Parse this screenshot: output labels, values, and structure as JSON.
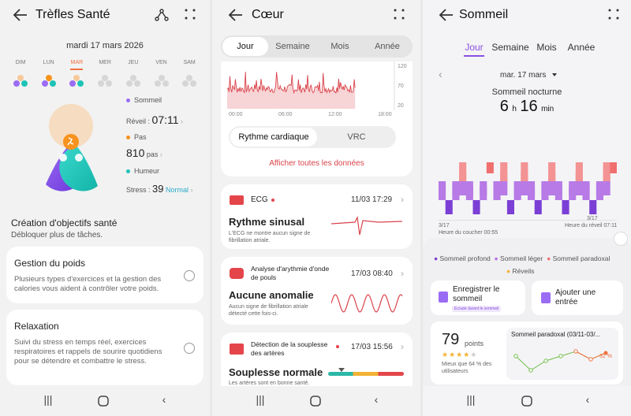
{
  "p1": {
    "title": "Trèfles Santé",
    "date": "mardi 17 mars 2026",
    "days": [
      "DIM",
      "LUN",
      "MAR",
      "MER",
      "JEU",
      "VEN",
      "SAM"
    ],
    "legend": {
      "sleep": "Sommeil",
      "wake_label": "Réveil :",
      "wake_value": "07:11",
      "steps": "Pas",
      "steps_value": "810",
      "steps_unit": "pas",
      "mood": "Humeur",
      "stress_label": "Stress :",
      "stress_value": "39",
      "stress_status": "Normal"
    },
    "goals_title": "Création d'objectifs santé",
    "goals_sub": "Débloquer plus de tâches.",
    "cards": [
      {
        "title": "Gestion du poids",
        "desc": "Plusieurs types d'exercices et la gestion des calories vous aident à contrôler votre poids."
      },
      {
        "title": "Relaxation",
        "desc": "Suivi du stress en temps réel, exercices respiratoires et rappels de sourire quotidiens pour se détendre et combattre le stress."
      }
    ]
  },
  "p2": {
    "title": "Cœur",
    "tabs": [
      "Jour",
      "Semaine",
      "Mois",
      "Année"
    ],
    "chart_data": {
      "type": "line",
      "x_ticks": [
        "00:00",
        "06:00",
        "12:00",
        "18:00"
      ],
      "y_ticks": [
        "120",
        "70",
        "20"
      ],
      "ylim": [
        20,
        120
      ]
    },
    "subtabs": [
      "Rythme cardiaque",
      "VRC"
    ],
    "show_all": "Afficher toutes les données",
    "ecg": {
      "label": "ECG",
      "time": "11/03 17:29",
      "result": "Rythme sinusal",
      "desc": "L'ECG ne montre aucun signe de fibrillation atriale."
    },
    "arr": {
      "label": "Analyse d'arythmie d'onde de pouls",
      "time": "17/03 08:40",
      "result": "Aucune anomalie",
      "desc": "Aucun signe de fibrillation atriale détecté cette fois-ci."
    },
    "art": {
      "label": "Détection de la souplesse des artères",
      "time": "17/03 15:56",
      "result": "Souplesse normale",
      "desc": "Les artères sont en bonne santé."
    }
  },
  "p3": {
    "title": "Sommeil",
    "tabs": [
      "Jour",
      "Semaine",
      "Mois",
      "Année"
    ],
    "date": "mar. 17 mars",
    "night_label": "Sommeil nocturne",
    "hours": "6",
    "h_unit": "h",
    "minutes": "16",
    "m_unit": "min",
    "chart_data": {
      "type": "bar",
      "stages": [
        "Réveils",
        "Sommeil paradoxal",
        "Sommeil léger",
        "Sommeil profond"
      ]
    },
    "bed": {
      "date": "3/17",
      "label": "Heure du coucher 00:55"
    },
    "wake": {
      "date": "3/17",
      "label": "Heure du réveil 07:11"
    },
    "legend": [
      "Sommeil profond",
      "Sommeil léger",
      "Sommeil paradoxal",
      "Réveils"
    ],
    "record": {
      "label": "Enregistrer le sommeil",
      "badge": "Ecoute durant le sommeil"
    },
    "add": {
      "label": "Ajouter une entrée"
    },
    "score": {
      "value": "79",
      "unit": "points",
      "desc": "Mieux que 64 % des utilisateurs"
    },
    "rem": {
      "title": "Sommeil paradoxal (03/11-03/...",
      "pct": "32 %"
    }
  }
}
